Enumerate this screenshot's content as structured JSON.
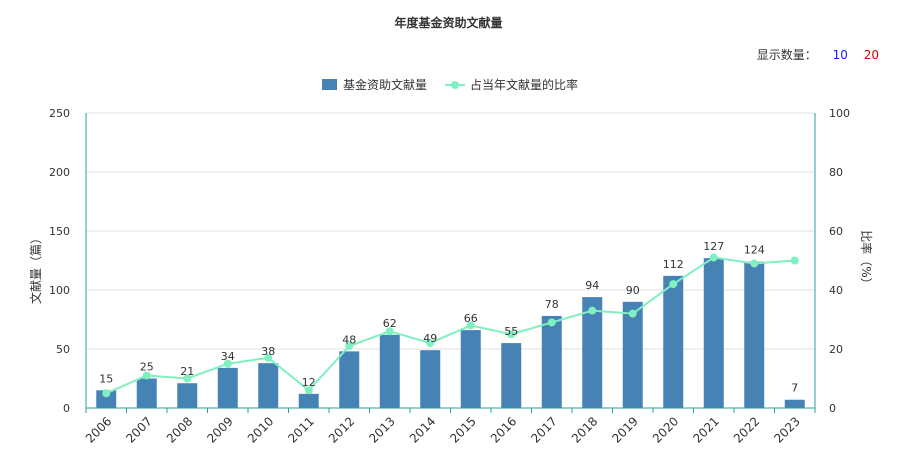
{
  "title": "年度基金资助文献量",
  "display_count": {
    "label": "显示数量：",
    "options": [
      "10",
      "20"
    ]
  },
  "colors": {
    "bar": "#4682b4",
    "line": "#7ff0c0",
    "axis": "#2aa0a0",
    "grid": "#e0e0e0",
    "text": "#333333"
  },
  "chart_data": {
    "type": "bar",
    "title": "年度基金资助文献量",
    "categories": [
      "2006",
      "2007",
      "2008",
      "2009",
      "2010",
      "2011",
      "2012",
      "2013",
      "2014",
      "2015",
      "2016",
      "2017",
      "2018",
      "2019",
      "2020",
      "2021",
      "2022",
      "2023"
    ],
    "series": [
      {
        "name": "基金资助文献量",
        "type": "bar",
        "axis": "left",
        "values": [
          15,
          25,
          21,
          34,
          38,
          12,
          48,
          62,
          49,
          66,
          55,
          78,
          94,
          90,
          112,
          127,
          124,
          7
        ]
      },
      {
        "name": "占当年文献量的比率",
        "type": "line",
        "axis": "right",
        "values": [
          5,
          11,
          10,
          15,
          17,
          6,
          21,
          26,
          22,
          28,
          25,
          29,
          33,
          32,
          42,
          51,
          49,
          50
        ]
      }
    ],
    "ylabel": "文献量（篇）",
    "ylabel_right": "比率（%）",
    "ylim": [
      0,
      250
    ],
    "ylim_right": [
      0,
      100
    ],
    "yticks": [
      "0",
      "50",
      "100",
      "150",
      "200",
      "250"
    ],
    "yticks_right": [
      "0",
      "20",
      "40",
      "60",
      "80",
      "100"
    ],
    "legend_position": "top-center",
    "grid": true
  }
}
